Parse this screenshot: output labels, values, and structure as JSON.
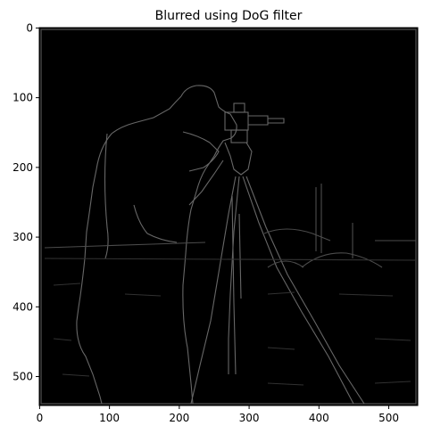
{
  "figure": {
    "title": "Blurred using DoG filter"
  },
  "image": {
    "description_icon": "edge-image-cameraman-icon",
    "background_color": "#000000",
    "edge_color": "#7a7a7a"
  },
  "axes": {
    "x_ticks": [
      0,
      100,
      200,
      300,
      400,
      500
    ],
    "y_ticks": [
      0,
      100,
      200,
      300,
      400,
      500
    ],
    "x_range": [
      0,
      542
    ],
    "y_range": [
      0,
      542
    ]
  }
}
